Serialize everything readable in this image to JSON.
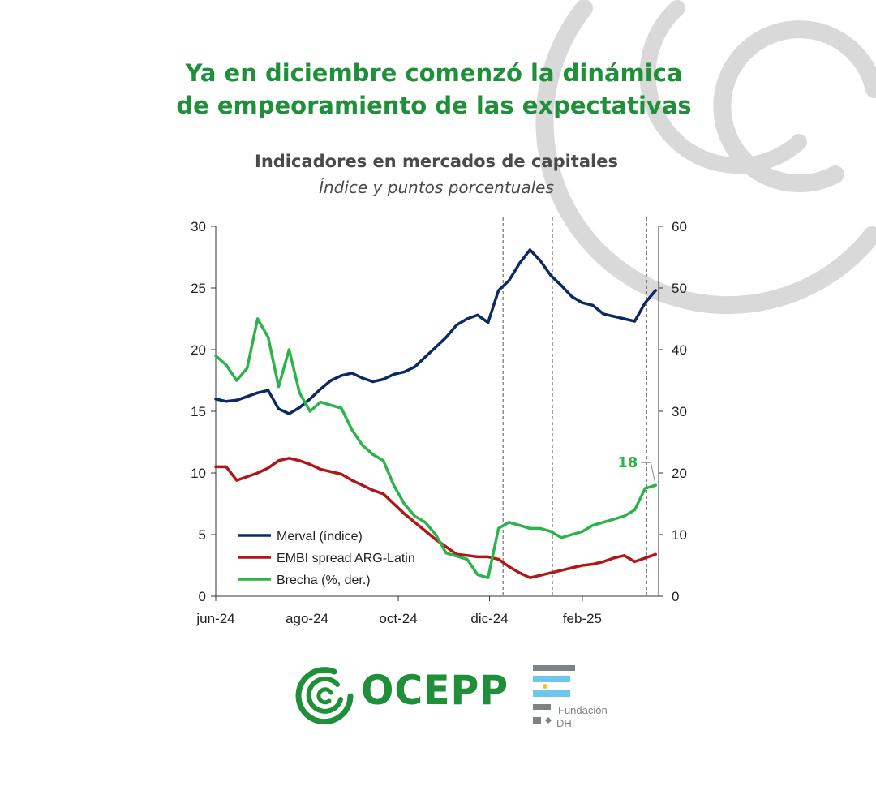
{
  "headline": {
    "line1": "Ya en diciembre comenzó la dinámica",
    "line2": "de empeoramiento de las expectativas"
  },
  "colors": {
    "brand_green": "#1f8f3a",
    "merval": "#0b2a63",
    "embi": "#b01717",
    "brecha": "#2db34a"
  },
  "chart_data": {
    "type": "line",
    "title": "Indicadores en mercados de capitales",
    "subtitle": "Índice y puntos porcentuales",
    "x": [
      "2024-06-01",
      "2024-06-08",
      "2024-06-15",
      "2024-06-22",
      "2024-06-29",
      "2024-07-06",
      "2024-07-13",
      "2024-07-20",
      "2024-07-27",
      "2024-08-03",
      "2024-08-10",
      "2024-08-17",
      "2024-08-24",
      "2024-08-31",
      "2024-09-07",
      "2024-09-14",
      "2024-09-21",
      "2024-09-28",
      "2024-10-05",
      "2024-10-12",
      "2024-10-19",
      "2024-10-26",
      "2024-11-02",
      "2024-11-09",
      "2024-11-16",
      "2024-11-23",
      "2024-11-30",
      "2024-12-07",
      "2024-12-14",
      "2024-12-21",
      "2024-12-28",
      "2025-01-04",
      "2025-01-11",
      "2025-01-18",
      "2025-01-25",
      "2025-02-01",
      "2025-02-08",
      "2025-02-15",
      "2025-02-22",
      "2025-03-01",
      "2025-03-08",
      "2025-03-15",
      "2025-03-22"
    ],
    "xticks": [
      "jun-24",
      "ago-24",
      "oct-24",
      "dic-24",
      "feb-25"
    ],
    "xtick_dates": [
      "2024-06-01",
      "2024-08-01",
      "2024-10-01",
      "2024-12-01",
      "2025-02-01"
    ],
    "ylim_left": [
      0,
      30
    ],
    "yticks_left": [
      "0",
      "5",
      "10",
      "15",
      "20",
      "25",
      "30"
    ],
    "ylim_right": [
      0,
      60
    ],
    "yticks_right": [
      "0",
      "10",
      "20",
      "30",
      "40",
      "50",
      "60"
    ],
    "series": [
      {
        "name": "Merval (índice)",
        "axis": "left",
        "color": "#0b2a63",
        "values": [
          16.0,
          15.8,
          15.9,
          16.2,
          16.5,
          16.7,
          15.2,
          14.8,
          15.3,
          16.0,
          16.8,
          17.5,
          17.9,
          18.1,
          17.7,
          17.4,
          17.6,
          18.0,
          18.2,
          18.6,
          19.4,
          20.2,
          21.0,
          22.0,
          22.5,
          22.8,
          22.2,
          24.8,
          25.6,
          27.0,
          28.1,
          27.2,
          26.0,
          25.2,
          24.3,
          23.8,
          23.6,
          22.9,
          22.7,
          22.5,
          22.3,
          23.8,
          24.8
        ]
      },
      {
        "name": "EMBI spread ARG-Latin",
        "axis": "left",
        "color": "#b01717",
        "values": [
          10.5,
          10.5,
          9.4,
          9.7,
          10.0,
          10.4,
          11.0,
          11.2,
          11.0,
          10.7,
          10.3,
          10.1,
          9.9,
          9.4,
          9.0,
          8.6,
          8.3,
          7.5,
          6.7,
          6.0,
          5.3,
          4.6,
          4.0,
          3.4,
          3.3,
          3.2,
          3.2,
          3.0,
          2.4,
          1.9,
          1.5,
          1.7,
          1.9,
          2.1,
          2.3,
          2.5,
          2.6,
          2.8,
          3.1,
          3.3,
          2.8,
          3.1,
          3.4
        ]
      },
      {
        "name": "Brecha (%, der.)",
        "axis": "right",
        "color": "#2db34a",
        "values": [
          39.0,
          37.5,
          35.0,
          37.0,
          45.0,
          42.0,
          34.0,
          40.0,
          33.0,
          30.0,
          31.5,
          31.0,
          30.5,
          27.0,
          24.5,
          23.0,
          22.0,
          18.0,
          15.0,
          13.0,
          12.0,
          10.0,
          7.0,
          6.5,
          6.0,
          3.5,
          3.0,
          11.0,
          12.0,
          11.5,
          11.0,
          11.0,
          10.5,
          9.5,
          10.0,
          10.5,
          11.5,
          12.0,
          12.5,
          13.0,
          14.0,
          17.5,
          18.0
        ]
      }
    ],
    "vlines": [
      "2024-12-10",
      "2025-01-12",
      "2025-03-16"
    ],
    "annotation": "18",
    "legend_position": "bottom-left",
    "grid": false
  },
  "logos": {
    "ocepp": "OCEPP",
    "fundacion_line1": "Fundación",
    "fundacion_line2": "DHI"
  }
}
